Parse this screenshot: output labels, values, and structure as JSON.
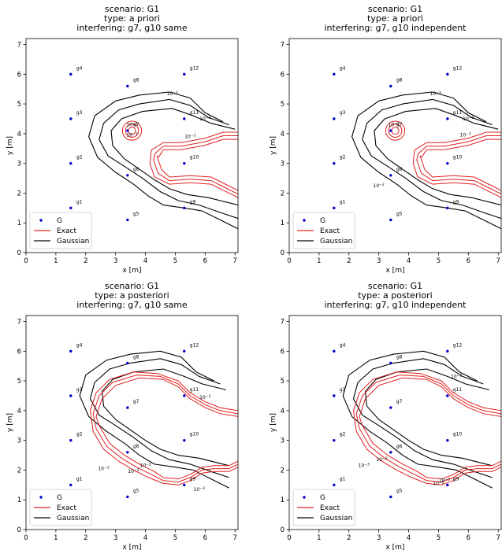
{
  "figure": {
    "legend": {
      "g": "G",
      "exact": "Exact",
      "gaussian": "Gaussian"
    },
    "colors": {
      "g": "#0000cc",
      "exact": "#e0201f",
      "gaussian": "#000000"
    }
  },
  "chart_data": [
    {
      "type": "contour",
      "title": [
        "scenario: G1",
        "type: a priori",
        "interfering: g7, g10 same"
      ],
      "xlabel": "x [m]",
      "ylabel": "y [m]",
      "xlim": [
        0,
        7.1
      ],
      "ylim": [
        0,
        7.2
      ],
      "xticks": [
        "0",
        "1",
        "2",
        "3",
        "4",
        "5",
        "6",
        "7"
      ],
      "yticks": [
        "0",
        "1",
        "2",
        "3",
        "4",
        "5",
        "6",
        "7"
      ],
      "legend_position": "lower-left",
      "contour_labels": [
        "10^-3",
        "10^-2",
        "10^-1",
        "10^-3",
        "10^-1"
      ]
    },
    {
      "type": "contour",
      "title": [
        "scenario: G1",
        "type: a priori",
        "interfering: g7, g10 independent"
      ],
      "xlabel": "x [m]",
      "ylabel": "y [m]",
      "xlim": [
        0,
        7.1
      ],
      "ylim": [
        0,
        7.2
      ],
      "xticks": [
        "0",
        "1",
        "2",
        "3",
        "4",
        "5",
        "6",
        "7"
      ],
      "yticks": [
        "0",
        "1",
        "2",
        "3",
        "4",
        "5",
        "6",
        "7"
      ],
      "legend_position": "lower-left",
      "contour_labels": [
        "10^-3",
        "10^-2",
        "10^-3",
        "10^-3",
        "10^-2"
      ]
    },
    {
      "type": "contour",
      "title": [
        "scenario: G1",
        "type: a posteriori",
        "interfering: g7, g10 same"
      ],
      "xlabel": "x [m]",
      "ylabel": "y [m]",
      "xlim": [
        0,
        7.1
      ],
      "ylim": [
        0,
        7.2
      ],
      "xticks": [
        "0",
        "1",
        "2",
        "3",
        "4",
        "5",
        "6",
        "7"
      ],
      "yticks": [
        "0",
        "1",
        "2",
        "3",
        "4",
        "5",
        "6",
        "7"
      ],
      "legend_position": "lower-left",
      "contour_labels": [
        "10^-3",
        "10^-2",
        "10^-3",
        "10^-2",
        "10^-3"
      ]
    },
    {
      "type": "contour",
      "title": [
        "scenario: G1",
        "type: a posteriori",
        "interfering: g7, g10 independent"
      ],
      "xlabel": "x [m]",
      "ylabel": "y [m]",
      "xlim": [
        0,
        7.1
      ],
      "ylim": [
        0,
        7.2
      ],
      "xticks": [
        "0",
        "1",
        "2",
        "3",
        "4",
        "5",
        "6",
        "7"
      ],
      "yticks": [
        "0",
        "1",
        "2",
        "3",
        "4",
        "5",
        "6",
        "7"
      ],
      "legend_position": "lower-left",
      "contour_labels": [
        "10^-3",
        "10^-2",
        "10^-3",
        "10^-2",
        "10^-3"
      ]
    }
  ],
  "gateways": [
    {
      "name": "g1",
      "x": 1.5,
      "y": 1.5
    },
    {
      "name": "g2",
      "x": 1.5,
      "y": 3.0
    },
    {
      "name": "g3",
      "x": 1.5,
      "y": 4.5
    },
    {
      "name": "g4",
      "x": 1.5,
      "y": 6.0
    },
    {
      "name": "g5",
      "x": 3.4,
      "y": 1.1
    },
    {
      "name": "g6",
      "x": 3.4,
      "y": 2.6
    },
    {
      "name": "g7",
      "x": 3.4,
      "y": 4.1
    },
    {
      "name": "g8",
      "x": 3.4,
      "y": 5.6
    },
    {
      "name": "g9",
      "x": 5.3,
      "y": 1.5
    },
    {
      "name": "g10",
      "x": 5.3,
      "y": 3.0
    },
    {
      "name": "g11",
      "x": 5.3,
      "y": 4.5
    },
    {
      "name": "g12",
      "x": 5.3,
      "y": 6.0
    }
  ]
}
